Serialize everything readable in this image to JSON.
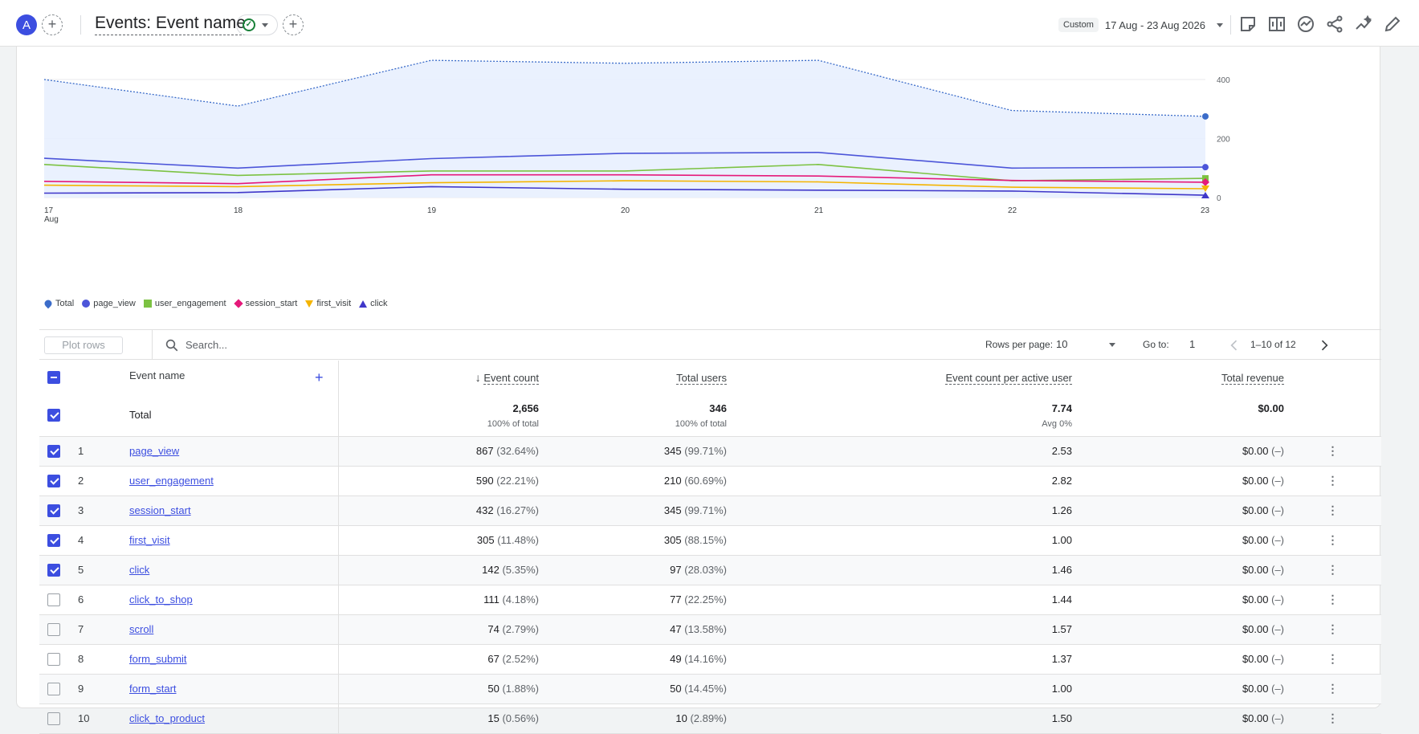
{
  "header": {
    "avatar_letter": "A",
    "title": "Events: Event name",
    "date_preset": "Custom",
    "date_range": "17 Aug - 23 Aug 2026",
    "add_comparison": "+",
    "add_filter": "+"
  },
  "colors": {
    "accent": "#3c4ee0",
    "total": "#3b6cc9",
    "page_view": "#4c55d9",
    "user_engagement": "#7cc242",
    "session_start": "#e5197a",
    "first_visit": "#f4b400",
    "click": "#3f37c9"
  },
  "chart_data": {
    "type": "line",
    "x": [
      "17",
      "18",
      "19",
      "20",
      "21",
      "22",
      "23"
    ],
    "x_tick_labels": [
      "17",
      "18",
      "19",
      "20",
      "21",
      "22",
      "23"
    ],
    "x_first_sub": "Aug",
    "y_ticks": [
      "0",
      "200",
      "400"
    ],
    "ylim": [
      0,
      470
    ],
    "grid": true,
    "legend_position": "bottom-left",
    "series": [
      {
        "name": "Total",
        "key": "total",
        "marker": "pin",
        "values": [
          400,
          310,
          465,
          455,
          465,
          295,
          275
        ]
      },
      {
        "name": "page_view",
        "key": "page_view",
        "marker": "circle",
        "values": [
          133,
          100,
          132,
          150,
          153,
          100,
          103
        ]
      },
      {
        "name": "user_engagement",
        "key": "user_engagement",
        "marker": "square",
        "values": [
          112,
          75,
          90,
          90,
          112,
          57,
          65
        ]
      },
      {
        "name": "session_start",
        "key": "session_start",
        "marker": "diamond",
        "values": [
          55,
          47,
          77,
          77,
          73,
          58,
          52
        ]
      },
      {
        "name": "first_visit",
        "key": "first_visit",
        "marker": "tri-down",
        "values": [
          42,
          37,
          50,
          57,
          53,
          35,
          30
        ]
      },
      {
        "name": "click",
        "key": "click",
        "marker": "tri-up",
        "values": [
          15,
          17,
          37,
          28,
          25,
          22,
          8
        ]
      }
    ]
  },
  "controls": {
    "plot_rows": "Plot rows",
    "search_placeholder": "Search...",
    "rows_per_page_label": "Rows per page:",
    "rows_per_page": "10",
    "goto_label": "Go to:",
    "goto_value": "1",
    "page_range": "1–10 of 12"
  },
  "table": {
    "columns": {
      "name": "Event name",
      "event_count": "Event count",
      "total_users": "Total users",
      "per_user": "Event count per active user",
      "revenue": "Total revenue"
    },
    "total": {
      "label": "Total",
      "event_count": "2,656",
      "event_count_sub": "100% of total",
      "total_users": "346",
      "total_users_sub": "100% of total",
      "per_user": "7.74",
      "per_user_sub": "Avg 0%",
      "revenue": "$0.00"
    },
    "rows": [
      {
        "n": "1",
        "name": "page_view",
        "checked": true,
        "ev": "867",
        "ev_pct": "(32.64%)",
        "tu": "345",
        "tu_pct": "(99.71%)",
        "pu": "2.53",
        "rev": "$0.00",
        "rev_pct": "(–)"
      },
      {
        "n": "2",
        "name": "user_engagement",
        "checked": true,
        "ev": "590",
        "ev_pct": "(22.21%)",
        "tu": "210",
        "tu_pct": "(60.69%)",
        "pu": "2.82",
        "rev": "$0.00",
        "rev_pct": "(–)"
      },
      {
        "n": "3",
        "name": "session_start",
        "checked": true,
        "ev": "432",
        "ev_pct": "(16.27%)",
        "tu": "345",
        "tu_pct": "(99.71%)",
        "pu": "1.26",
        "rev": "$0.00",
        "rev_pct": "(–)"
      },
      {
        "n": "4",
        "name": "first_visit",
        "checked": true,
        "ev": "305",
        "ev_pct": "(11.48%)",
        "tu": "305",
        "tu_pct": "(88.15%)",
        "pu": "1.00",
        "rev": "$0.00",
        "rev_pct": "(–)"
      },
      {
        "n": "5",
        "name": "click",
        "checked": true,
        "ev": "142",
        "ev_pct": "(5.35%)",
        "tu": "97",
        "tu_pct": "(28.03%)",
        "pu": "1.46",
        "rev": "$0.00",
        "rev_pct": "(–)"
      },
      {
        "n": "6",
        "name": "click_to_shop",
        "checked": false,
        "ev": "111",
        "ev_pct": "(4.18%)",
        "tu": "77",
        "tu_pct": "(22.25%)",
        "pu": "1.44",
        "rev": "$0.00",
        "rev_pct": "(–)"
      },
      {
        "n": "7",
        "name": "scroll",
        "checked": false,
        "ev": "74",
        "ev_pct": "(2.79%)",
        "tu": "47",
        "tu_pct": "(13.58%)",
        "pu": "1.57",
        "rev": "$0.00",
        "rev_pct": "(–)"
      },
      {
        "n": "8",
        "name": "form_submit",
        "checked": false,
        "ev": "67",
        "ev_pct": "(2.52%)",
        "tu": "49",
        "tu_pct": "(14.16%)",
        "pu": "1.37",
        "rev": "$0.00",
        "rev_pct": "(–)"
      },
      {
        "n": "9",
        "name": "form_start",
        "checked": false,
        "ev": "50",
        "ev_pct": "(1.88%)",
        "tu": "50",
        "tu_pct": "(14.45%)",
        "pu": "1.00",
        "rev": "$0.00",
        "rev_pct": "(–)"
      },
      {
        "n": "10",
        "name": "click_to_product",
        "checked": false,
        "ev": "15",
        "ev_pct": "(0.56%)",
        "tu": "10",
        "tu_pct": "(2.89%)",
        "pu": "1.50",
        "rev": "$0.00",
        "rev_pct": "(–)"
      }
    ]
  }
}
